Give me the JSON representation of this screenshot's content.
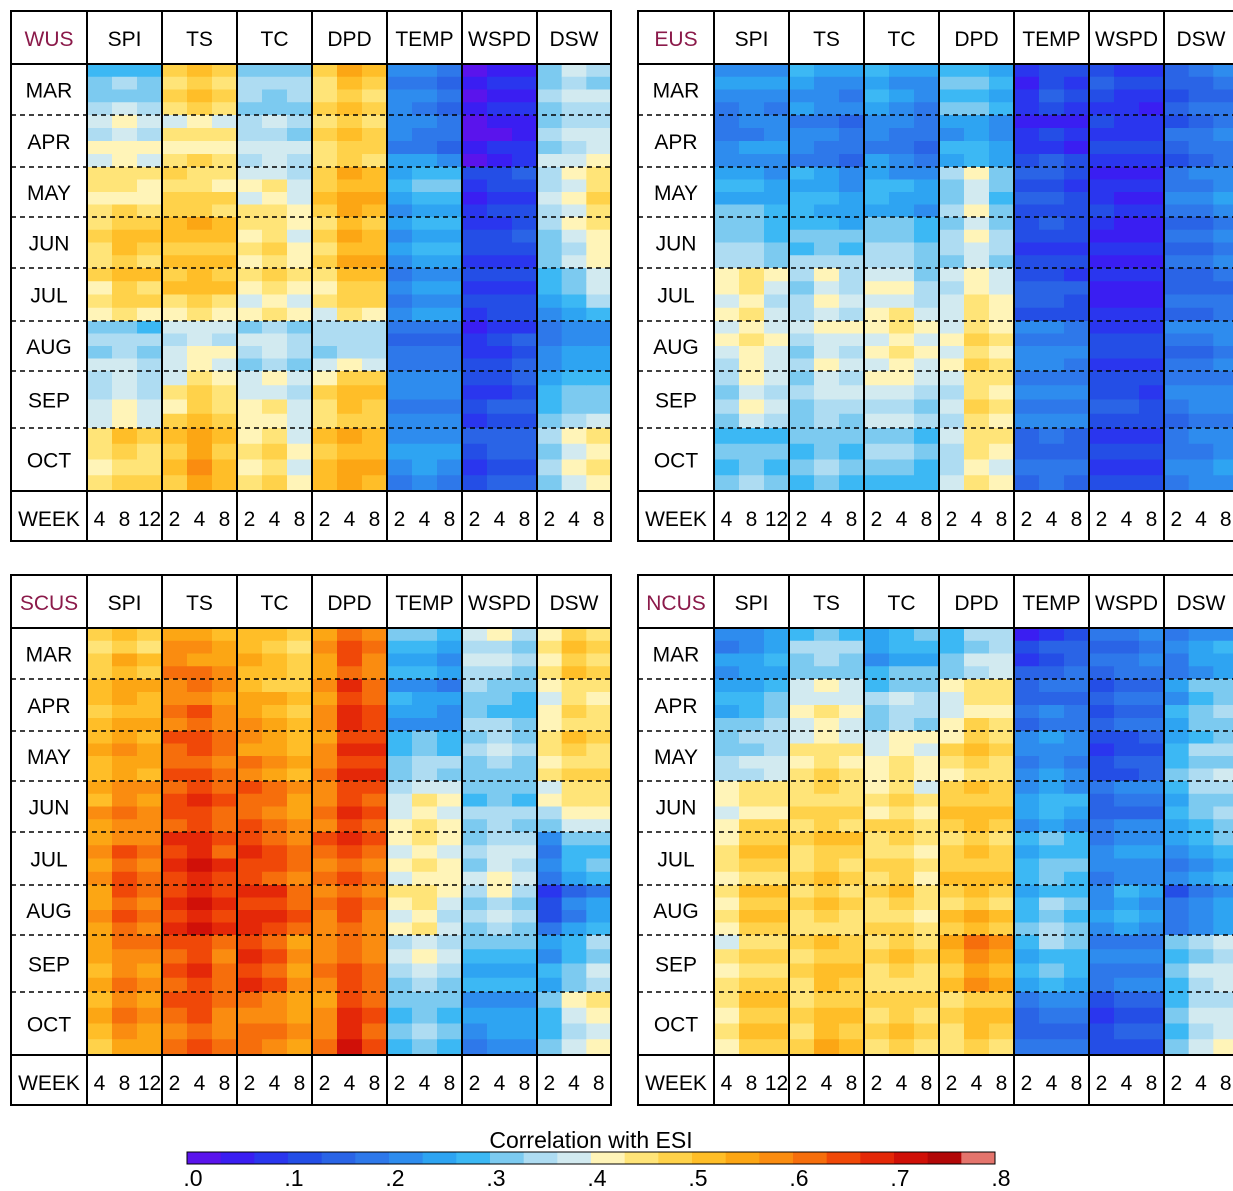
{
  "chart_data": {
    "type": "heatmap",
    "colorbar": {
      "title": "Correlation with ESI",
      "ticks": [
        ".0",
        ".1",
        ".2",
        ".3",
        ".4",
        ".5",
        ".6",
        ".7",
        ".8"
      ],
      "range": [
        0,
        0.8
      ],
      "colors": [
        "#5a14ec",
        "#3a1ef2",
        "#2a36ee",
        "#244ee6",
        "#2a64e6",
        "#2e78ea",
        "#2e8cee",
        "#2ea4f2",
        "#3cb8f4",
        "#7ccaf0",
        "#aedcf2",
        "#d2eaf0",
        "#fff4b8",
        "#ffe478",
        "#ffd24a",
        "#ffbe28",
        "#fca614",
        "#fa8c10",
        "#f66e0c",
        "#f04808",
        "#e42808",
        "#d01008",
        "#b20808",
        "#e4746c"
      ]
    },
    "week_row_label": "WEEK",
    "months": [
      "MAR",
      "APR",
      "MAY",
      "JUN",
      "JUL",
      "AUG",
      "SEP",
      "OCT"
    ],
    "variables": [
      {
        "name": "SPI",
        "weeks": [
          "4",
          "8",
          "12"
        ]
      },
      {
        "name": "TS",
        "weeks": [
          "2",
          "4",
          "8"
        ]
      },
      {
        "name": "TC",
        "weeks": [
          "2",
          "4",
          "8"
        ]
      },
      {
        "name": "DPD",
        "weeks": [
          "2",
          "4",
          "8"
        ]
      },
      {
        "name": "TEMP",
        "weeks": [
          "2",
          "4",
          "8"
        ]
      },
      {
        "name": "WSPD",
        "weeks": [
          "2",
          "4",
          "8"
        ]
      },
      {
        "name": "DSW",
        "weeks": [
          "2",
          "4",
          "8"
        ]
      }
    ],
    "panels": [
      {
        "region": "WUS",
        "values": [
          [
            0.3,
            0.32,
            0.3,
            0.46,
            0.5,
            0.48,
            0.34,
            0.32,
            0.34,
            0.46,
            0.52,
            0.5,
            0.22,
            0.2,
            0.18,
            0.04,
            0.06,
            0.08,
            0.32,
            0.36,
            0.34
          ],
          [
            0.38,
            0.4,
            0.38,
            0.42,
            0.44,
            0.42,
            0.34,
            0.36,
            0.34,
            0.45,
            0.48,
            0.46,
            0.2,
            0.18,
            0.16,
            0.02,
            0.04,
            0.06,
            0.34,
            0.36,
            0.36
          ],
          [
            0.44,
            0.44,
            0.42,
            0.48,
            0.46,
            0.44,
            0.4,
            0.42,
            0.38,
            0.48,
            0.54,
            0.52,
            0.26,
            0.3,
            0.28,
            0.08,
            0.1,
            0.12,
            0.36,
            0.4,
            0.46
          ],
          [
            0.46,
            0.5,
            0.48,
            0.5,
            0.52,
            0.5,
            0.44,
            0.46,
            0.42,
            0.48,
            0.54,
            0.52,
            0.24,
            0.26,
            0.26,
            0.1,
            0.1,
            0.12,
            0.34,
            0.38,
            0.44
          ],
          [
            0.46,
            0.52,
            0.5,
            0.5,
            0.52,
            0.5,
            0.44,
            0.46,
            0.42,
            0.46,
            0.52,
            0.52,
            0.22,
            0.24,
            0.24,
            0.1,
            0.1,
            0.1,
            0.28,
            0.32,
            0.38
          ],
          [
            0.34,
            0.34,
            0.32,
            0.36,
            0.38,
            0.36,
            0.34,
            0.36,
            0.34,
            0.32,
            0.34,
            0.32,
            0.18,
            0.18,
            0.18,
            0.08,
            0.1,
            0.12,
            0.18,
            0.2,
            0.22
          ],
          [
            0.36,
            0.38,
            0.36,
            0.42,
            0.46,
            0.44,
            0.38,
            0.4,
            0.36,
            0.44,
            0.5,
            0.48,
            0.2,
            0.2,
            0.2,
            0.1,
            0.12,
            0.14,
            0.26,
            0.3,
            0.3
          ],
          [
            0.44,
            0.48,
            0.46,
            0.5,
            0.56,
            0.52,
            0.44,
            0.46,
            0.4,
            0.5,
            0.54,
            0.52,
            0.22,
            0.24,
            0.22,
            0.12,
            0.14,
            0.14,
            0.34,
            0.4,
            0.44
          ]
        ]
      },
      {
        "region": "EUS",
        "values": [
          [
            0.22,
            0.24,
            0.22,
            0.26,
            0.24,
            0.22,
            0.28,
            0.26,
            0.24,
            0.3,
            0.3,
            0.28,
            0.08,
            0.12,
            0.1,
            0.12,
            0.1,
            0.08,
            0.14,
            0.16,
            0.18
          ],
          [
            0.18,
            0.2,
            0.22,
            0.18,
            0.18,
            0.16,
            0.2,
            0.18,
            0.16,
            0.24,
            0.24,
            0.22,
            0.06,
            0.08,
            0.06,
            0.1,
            0.08,
            0.08,
            0.14,
            0.16,
            0.18
          ],
          [
            0.26,
            0.26,
            0.24,
            0.26,
            0.24,
            0.22,
            0.26,
            0.24,
            0.22,
            0.32,
            0.4,
            0.3,
            0.14,
            0.16,
            0.12,
            0.08,
            0.08,
            0.08,
            0.18,
            0.2,
            0.22
          ],
          [
            0.32,
            0.32,
            0.3,
            0.3,
            0.3,
            0.28,
            0.3,
            0.3,
            0.28,
            0.34,
            0.38,
            0.32,
            0.1,
            0.12,
            0.1,
            0.08,
            0.06,
            0.06,
            0.18,
            0.18,
            0.2
          ],
          [
            0.4,
            0.44,
            0.38,
            0.34,
            0.4,
            0.36,
            0.4,
            0.4,
            0.34,
            0.36,
            0.42,
            0.38,
            0.12,
            0.12,
            0.1,
            0.06,
            0.06,
            0.06,
            0.16,
            0.16,
            0.18
          ],
          [
            0.4,
            0.44,
            0.4,
            0.36,
            0.4,
            0.38,
            0.42,
            0.44,
            0.4,
            0.4,
            0.46,
            0.44,
            0.2,
            0.2,
            0.18,
            0.1,
            0.1,
            0.1,
            0.18,
            0.18,
            0.2
          ],
          [
            0.34,
            0.4,
            0.38,
            0.34,
            0.38,
            0.36,
            0.38,
            0.4,
            0.36,
            0.38,
            0.46,
            0.44,
            0.22,
            0.22,
            0.2,
            0.12,
            0.12,
            0.1,
            0.18,
            0.2,
            0.2
          ],
          [
            0.3,
            0.32,
            0.3,
            0.3,
            0.32,
            0.3,
            0.32,
            0.32,
            0.3,
            0.36,
            0.44,
            0.42,
            0.16,
            0.18,
            0.16,
            0.1,
            0.1,
            0.1,
            0.18,
            0.2,
            0.22
          ]
        ]
      },
      {
        "region": "SCUS",
        "values": [
          [
            0.48,
            0.52,
            0.48,
            0.58,
            0.56,
            0.54,
            0.52,
            0.5,
            0.46,
            0.56,
            0.64,
            0.58,
            0.3,
            0.28,
            0.26,
            0.38,
            0.4,
            0.36,
            0.44,
            0.5,
            0.48
          ],
          [
            0.5,
            0.54,
            0.52,
            0.6,
            0.62,
            0.58,
            0.54,
            0.52,
            0.5,
            0.56,
            0.66,
            0.62,
            0.24,
            0.22,
            0.2,
            0.32,
            0.3,
            0.28,
            0.4,
            0.46,
            0.44
          ],
          [
            0.52,
            0.56,
            0.54,
            0.62,
            0.64,
            0.6,
            0.58,
            0.56,
            0.52,
            0.58,
            0.68,
            0.66,
            0.28,
            0.3,
            0.28,
            0.34,
            0.36,
            0.34,
            0.44,
            0.48,
            0.46
          ],
          [
            0.54,
            0.58,
            0.56,
            0.64,
            0.66,
            0.62,
            0.62,
            0.6,
            0.56,
            0.6,
            0.66,
            0.64,
            0.38,
            0.42,
            0.4,
            0.3,
            0.32,
            0.3,
            0.4,
            0.46,
            0.46
          ],
          [
            0.56,
            0.62,
            0.6,
            0.66,
            0.68,
            0.64,
            0.66,
            0.64,
            0.6,
            0.62,
            0.66,
            0.62,
            0.4,
            0.44,
            0.42,
            0.34,
            0.38,
            0.36,
            0.22,
            0.3,
            0.32
          ],
          [
            0.56,
            0.64,
            0.62,
            0.66,
            0.7,
            0.66,
            0.68,
            0.66,
            0.62,
            0.6,
            0.64,
            0.6,
            0.42,
            0.44,
            0.4,
            0.36,
            0.4,
            0.36,
            0.1,
            0.18,
            0.22
          ],
          [
            0.54,
            0.6,
            0.58,
            0.64,
            0.66,
            0.62,
            0.66,
            0.64,
            0.58,
            0.58,
            0.62,
            0.58,
            0.36,
            0.4,
            0.36,
            0.28,
            0.3,
            0.28,
            0.24,
            0.3,
            0.34
          ],
          [
            0.52,
            0.58,
            0.56,
            0.62,
            0.64,
            0.6,
            0.62,
            0.6,
            0.56,
            0.58,
            0.68,
            0.64,
            0.3,
            0.32,
            0.3,
            0.22,
            0.24,
            0.24,
            0.3,
            0.38,
            0.42
          ]
        ]
      },
      {
        "region": "NCUS",
        "values": [
          [
            0.2,
            0.22,
            0.24,
            0.3,
            0.32,
            0.3,
            0.24,
            0.26,
            0.28,
            0.3,
            0.34,
            0.36,
            0.08,
            0.12,
            0.14,
            0.16,
            0.18,
            0.2,
            0.18,
            0.22,
            0.24
          ],
          [
            0.26,
            0.28,
            0.3,
            0.38,
            0.4,
            0.38,
            0.3,
            0.34,
            0.32,
            0.38,
            0.44,
            0.44,
            0.16,
            0.18,
            0.18,
            0.14,
            0.16,
            0.16,
            0.24,
            0.3,
            0.32
          ],
          [
            0.32,
            0.34,
            0.36,
            0.42,
            0.44,
            0.42,
            0.38,
            0.42,
            0.4,
            0.44,
            0.48,
            0.46,
            0.2,
            0.22,
            0.2,
            0.1,
            0.12,
            0.14,
            0.28,
            0.32,
            0.34
          ],
          [
            0.4,
            0.44,
            0.44,
            0.46,
            0.48,
            0.46,
            0.44,
            0.46,
            0.42,
            0.48,
            0.5,
            0.48,
            0.24,
            0.26,
            0.24,
            0.16,
            0.18,
            0.18,
            0.3,
            0.34,
            0.36
          ],
          [
            0.44,
            0.48,
            0.48,
            0.46,
            0.5,
            0.48,
            0.46,
            0.48,
            0.44,
            0.48,
            0.5,
            0.48,
            0.26,
            0.3,
            0.28,
            0.2,
            0.22,
            0.22,
            0.22,
            0.26,
            0.3
          ],
          [
            0.44,
            0.5,
            0.5,
            0.46,
            0.48,
            0.46,
            0.46,
            0.48,
            0.44,
            0.48,
            0.5,
            0.48,
            0.28,
            0.32,
            0.3,
            0.22,
            0.26,
            0.24,
            0.14,
            0.18,
            0.22
          ],
          [
            0.42,
            0.46,
            0.46,
            0.46,
            0.5,
            0.48,
            0.46,
            0.48,
            0.46,
            0.52,
            0.6,
            0.56,
            0.3,
            0.34,
            0.32,
            0.2,
            0.22,
            0.22,
            0.3,
            0.34,
            0.36
          ],
          [
            0.44,
            0.5,
            0.5,
            0.46,
            0.52,
            0.5,
            0.46,
            0.48,
            0.46,
            0.46,
            0.5,
            0.48,
            0.16,
            0.18,
            0.18,
            0.12,
            0.14,
            0.14,
            0.3,
            0.36,
            0.38
          ]
        ]
      }
    ]
  }
}
